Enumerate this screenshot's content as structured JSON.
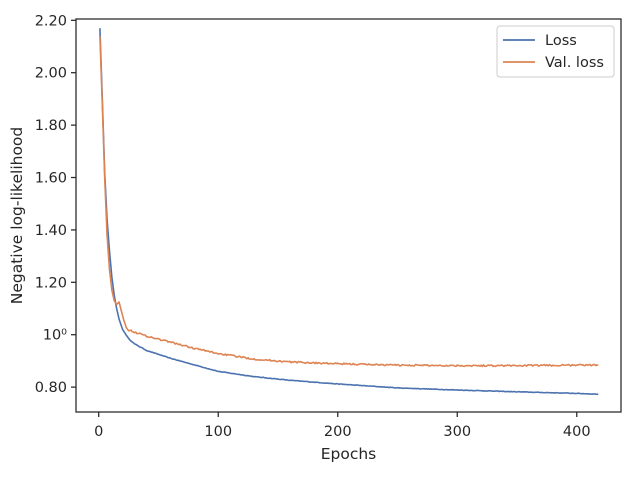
{
  "chart_data": {
    "type": "line",
    "xlabel": "Epochs",
    "ylabel": "Negative log-likelihood",
    "xlim": [
      -19,
      437
    ],
    "ylim": [
      0.705,
      2.205
    ],
    "xticks": [
      0,
      100,
      200,
      300,
      400
    ],
    "xtick_labels": [
      "0",
      "100",
      "200",
      "300",
      "400"
    ],
    "yticks": [
      0.8,
      1.0,
      1.2,
      1.4,
      1.6,
      1.8,
      2.0,
      2.2
    ],
    "ytick_labels": [
      "0.80",
      "10⁰",
      "1.20",
      "1.40",
      "1.60",
      "1.80",
      "2.00",
      "2.20"
    ],
    "grid": false,
    "legend_position": "top-right",
    "series": [
      {
        "name": "Loss",
        "color": "#4c72b0",
        "x": [
          1,
          3,
          5,
          7,
          9,
          11,
          13,
          15,
          17,
          20,
          25,
          30,
          40,
          50,
          60,
          80,
          100,
          130,
          160,
          200,
          250,
          300,
          350,
          400,
          418
        ],
        "y": [
          2.17,
          1.9,
          1.62,
          1.44,
          1.32,
          1.22,
          1.15,
          1.1,
          1.06,
          1.02,
          0.985,
          0.965,
          0.94,
          0.925,
          0.91,
          0.885,
          0.86,
          0.84,
          0.826,
          0.812,
          0.797,
          0.789,
          0.782,
          0.776,
          0.773
        ]
      },
      {
        "name": "Val. loss",
        "color": "#dd8452",
        "x": [
          1,
          3,
          5,
          7,
          9,
          11,
          13,
          15,
          17,
          19,
          21,
          23,
          25,
          30,
          40,
          50,
          60,
          80,
          100,
          130,
          160,
          200,
          250,
          300,
          350,
          400,
          418
        ],
        "y": [
          2.14,
          1.88,
          1.6,
          1.38,
          1.25,
          1.17,
          1.13,
          1.115,
          1.125,
          1.09,
          1.055,
          1.03,
          1.018,
          1.01,
          0.995,
          0.983,
          0.972,
          0.948,
          0.928,
          0.907,
          0.896,
          0.889,
          0.884,
          0.882,
          0.882,
          0.884,
          0.884
        ]
      }
    ]
  }
}
